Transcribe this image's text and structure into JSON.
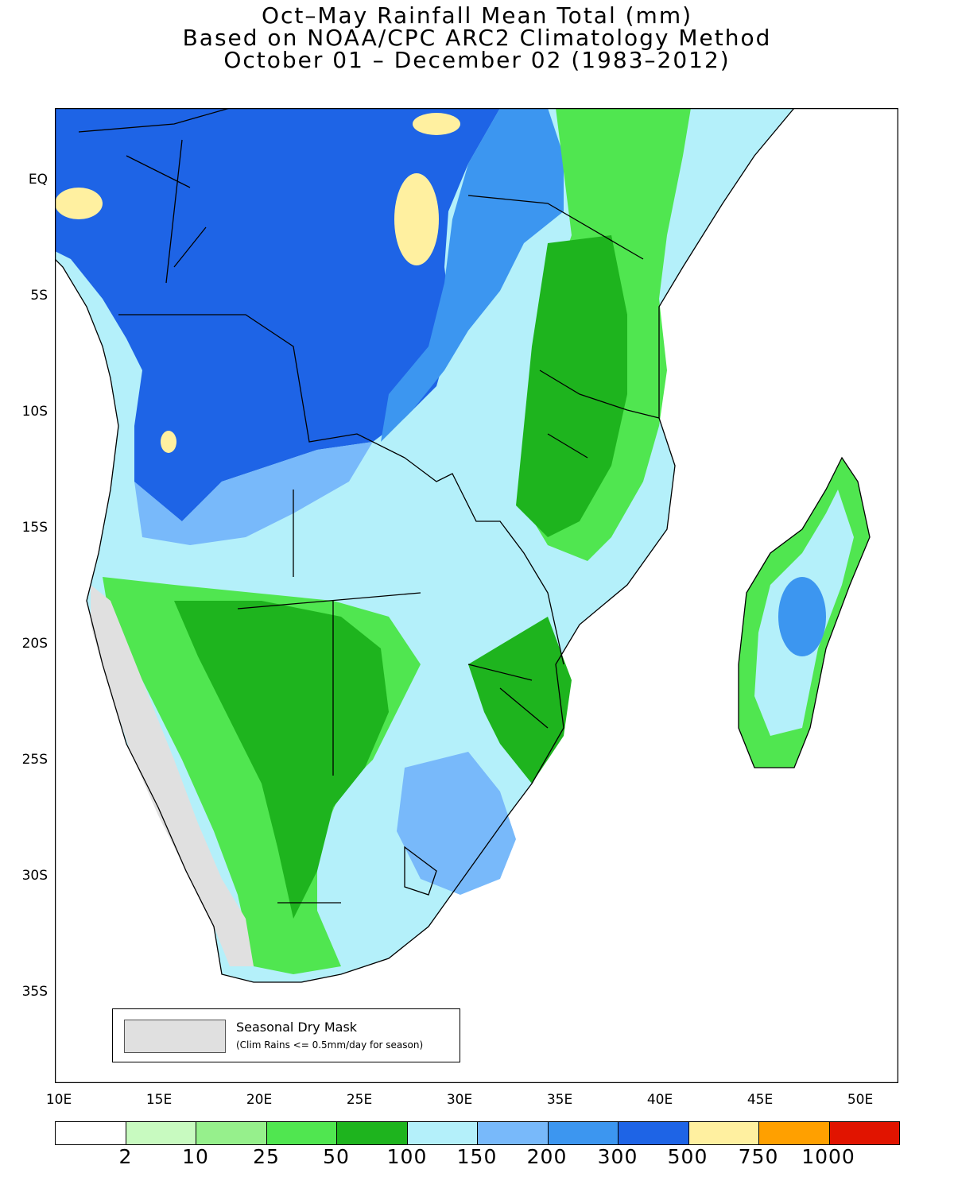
{
  "title": {
    "line1": "Oct–May Rainfall Mean Total (mm)",
    "line2": "Based on NOAA/CPC ARC2 Climatology Method",
    "line3": "October 01 – December 02 (1983–2012)"
  },
  "map": {
    "lon_range": [
      10,
      52
    ],
    "lat_range": [
      -39,
      3.5
    ],
    "y_ticks": [
      "EQ",
      "5S",
      "10S",
      "15S",
      "20S",
      "25S",
      "30S",
      "35S"
    ],
    "x_ticks": [
      "10E",
      "15E",
      "20E",
      "25E",
      "30E",
      "35E",
      "40E",
      "45E",
      "50E"
    ]
  },
  "dry_mask_legend": {
    "title": "Seasonal Dry Mask",
    "note": "(Clim Rains <= 0.5mm/day for season)",
    "color": "#e0e0e0"
  },
  "colorbar": {
    "colors": [
      "#ffffff",
      "#c8fac0",
      "#96f08c",
      "#50e650",
      "#1eb41e",
      "#b4f0fa",
      "#78b9fa",
      "#3c96f0",
      "#1e64e6",
      "#fff0a0",
      "#ffa000",
      "#e11400"
    ],
    "labels": [
      "2",
      "10",
      "25",
      "50",
      "100",
      "150",
      "200",
      "300",
      "500",
      "750",
      "1000"
    ]
  }
}
